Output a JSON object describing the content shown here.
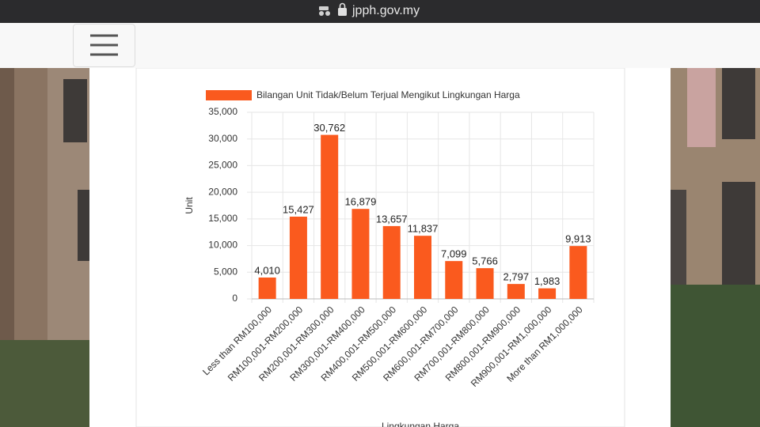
{
  "browser": {
    "url": "jpph.gov.my"
  },
  "chart_data": {
    "type": "bar",
    "series": [
      {
        "name": "Bilangan Unit Tidak/Belum Terjual Mengikut Lingkungan Harga",
        "color": "#fa5a1e",
        "values": [
          4010,
          15427,
          30762,
          16879,
          13657,
          11837,
          7099,
          5766,
          2797,
          1983,
          9913
        ],
        "value_labels": [
          "4,010",
          "15,427",
          "30,762",
          "16,879",
          "13,657",
          "11,837",
          "7,099",
          "5,766",
          "2,797",
          "1,983",
          "9,913"
        ]
      }
    ],
    "categories": [
      "Less than RM100,000",
      "RM100,001-RM200,000",
      "RM200,001-RM300,000",
      "RM300,001-RM400,000",
      "RM400,001-RM500,000",
      "RM500,001-RM600,000",
      "RM600,001-RM700,000",
      "RM700,001-RM800,000",
      "RM800,001-RM900,000",
      "RM900,001-RM1,000,000",
      "More than RM1,000,000"
    ],
    "y_label": "Unit",
    "x_label": "Lingkungan Harga",
    "ylim": [
      0,
      35000
    ],
    "yticks": [
      0,
      {
        "value": 5000,
        "label": "5,000"
      },
      {
        "value": 10000,
        "label": "10,000"
      },
      {
        "value": 15000,
        "label": "15,000"
      },
      {
        "value": 20000,
        "label": "20,000"
      },
      {
        "value": 25000,
        "label": "25,000"
      },
      {
        "value": 30000,
        "label": "30,000"
      },
      {
        "value": 35000,
        "label": "35,000"
      }
    ],
    "grid": true
  }
}
